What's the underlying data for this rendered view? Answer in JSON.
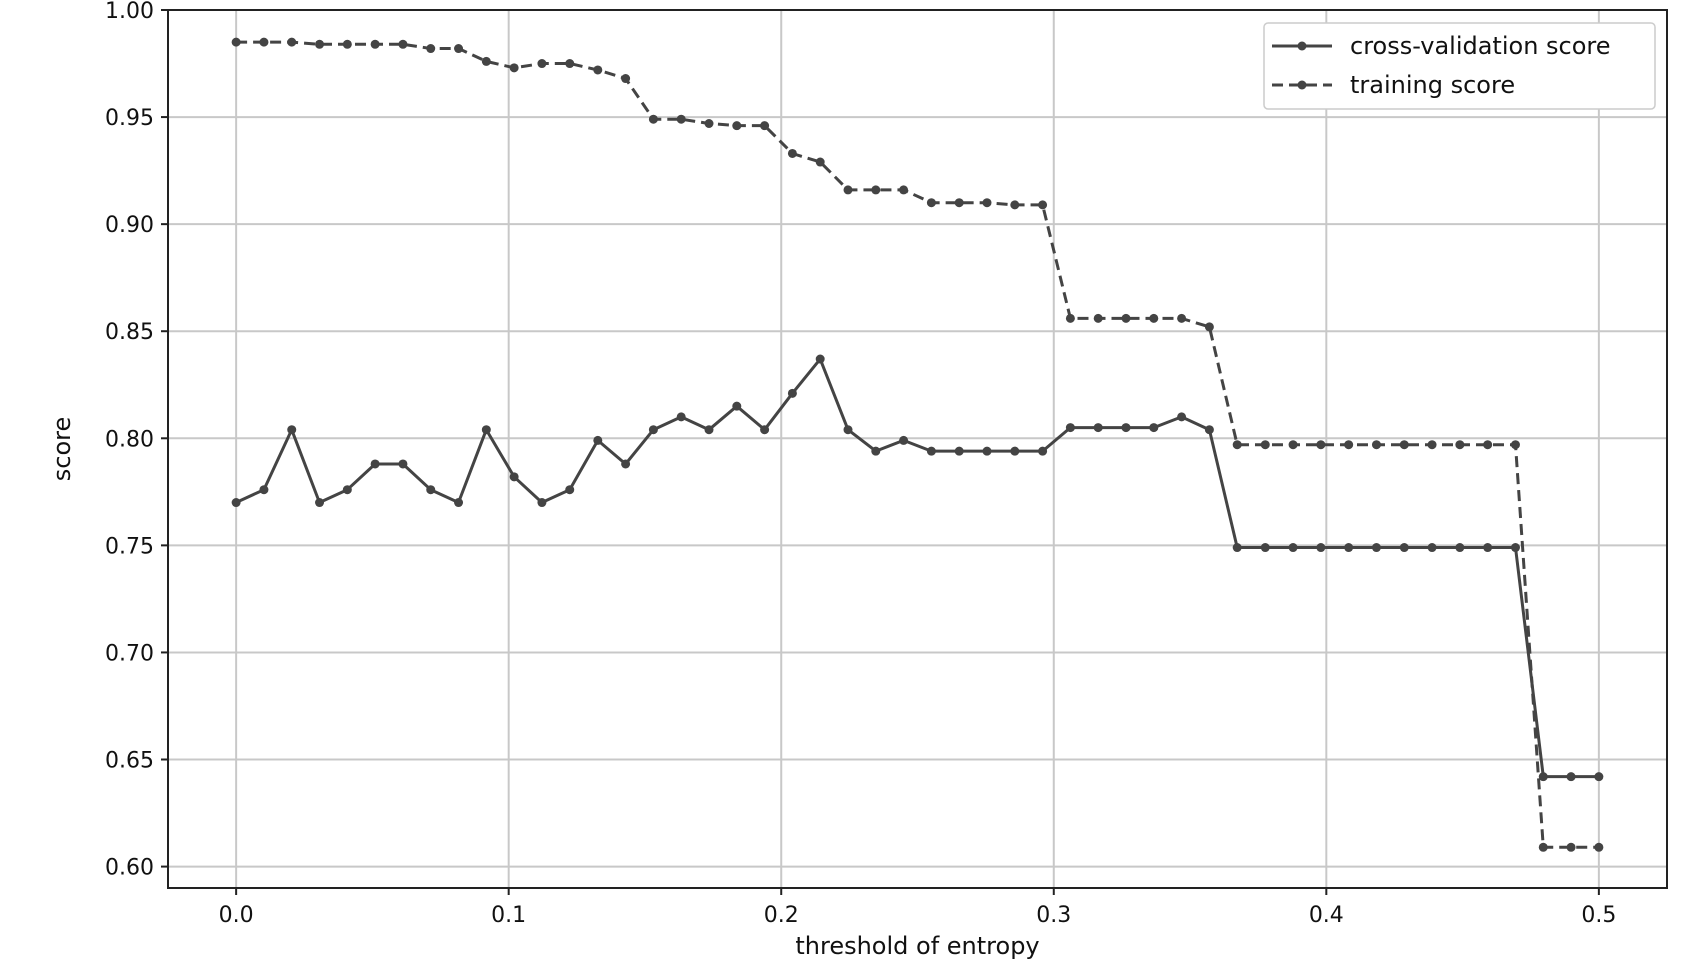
{
  "chart_data": {
    "type": "line",
    "title": "",
    "xlabel": "threshold of entropy",
    "ylabel": "score",
    "xlim": [
      -0.025,
      0.525
    ],
    "ylim": [
      0.59,
      1.0
    ],
    "xticks": [
      0.0,
      0.1,
      0.2,
      0.3,
      0.4,
      0.5
    ],
    "xtick_labels": [
      "0.0",
      "0.1",
      "0.2",
      "0.3",
      "0.4",
      "0.5"
    ],
    "yticks": [
      0.6,
      0.65,
      0.7,
      0.75,
      0.8,
      0.85,
      0.9,
      0.95,
      1.0
    ],
    "ytick_labels": [
      "0.60",
      "0.65",
      "0.70",
      "0.75",
      "0.80",
      "0.85",
      "0.90",
      "0.95",
      "1.00"
    ],
    "grid": true,
    "legend_position": "top-right",
    "x": [
      0.0,
      0.0102,
      0.0204,
      0.0306,
      0.0408,
      0.051,
      0.0612,
      0.0714,
      0.0816,
      0.0918,
      0.102,
      0.1122,
      0.1224,
      0.1327,
      0.1429,
      0.1531,
      0.1633,
      0.1735,
      0.1837,
      0.1939,
      0.2041,
      0.2143,
      0.2245,
      0.2347,
      0.2449,
      0.2551,
      0.2653,
      0.2755,
      0.2857,
      0.2959,
      0.3061,
      0.3163,
      0.3265,
      0.3367,
      0.3469,
      0.3571,
      0.3673,
      0.3776,
      0.3878,
      0.398,
      0.4082,
      0.4184,
      0.4286,
      0.4388,
      0.449,
      0.4592,
      0.4694,
      0.4796,
      0.4898,
      0.5
    ],
    "series": [
      {
        "name": "cross-validation score",
        "style": "solid",
        "color": "#444444",
        "values": [
          0.77,
          0.776,
          0.804,
          0.77,
          0.776,
          0.788,
          0.788,
          0.776,
          0.77,
          0.804,
          0.782,
          0.77,
          0.776,
          0.799,
          0.788,
          0.804,
          0.81,
          0.804,
          0.815,
          0.804,
          0.821,
          0.837,
          0.804,
          0.794,
          0.799,
          0.794,
          0.794,
          0.794,
          0.794,
          0.794,
          0.805,
          0.805,
          0.805,
          0.805,
          0.81,
          0.804,
          0.749,
          0.749,
          0.749,
          0.749,
          0.749,
          0.749,
          0.749,
          0.749,
          0.749,
          0.749,
          0.749,
          0.642,
          0.642,
          0.642
        ]
      },
      {
        "name": "training score",
        "style": "dashed",
        "color": "#444444",
        "values": [
          0.985,
          0.985,
          0.985,
          0.984,
          0.984,
          0.984,
          0.984,
          0.982,
          0.982,
          0.976,
          0.973,
          0.975,
          0.975,
          0.972,
          0.968,
          0.949,
          0.949,
          0.947,
          0.946,
          0.946,
          0.933,
          0.929,
          0.916,
          0.916,
          0.916,
          0.91,
          0.91,
          0.91,
          0.909,
          0.909,
          0.856,
          0.856,
          0.856,
          0.856,
          0.856,
          0.852,
          0.797,
          0.797,
          0.797,
          0.797,
          0.797,
          0.797,
          0.797,
          0.797,
          0.797,
          0.797,
          0.797,
          0.609,
          0.609,
          0.609
        ]
      }
    ]
  }
}
